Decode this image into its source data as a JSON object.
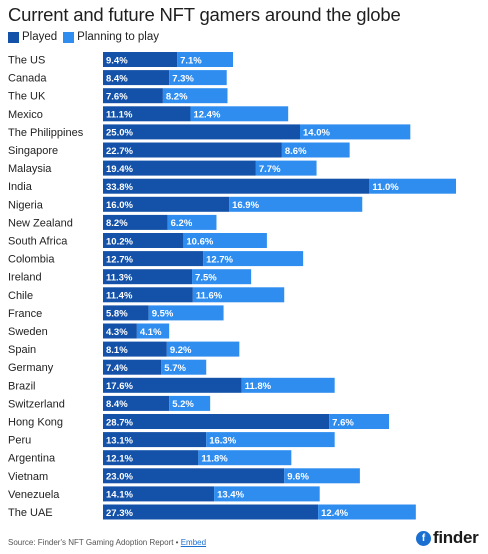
{
  "title": "Current and future NFT gamers around the globe",
  "legend": [
    {
      "label": "Played",
      "color": "#1451a8"
    },
    {
      "label": "Planning to play",
      "color": "#2f8df0"
    }
  ],
  "source": {
    "text": "Source: Finder's NFT Gaming Adoption Report • ",
    "link": "Embed"
  },
  "logo": {
    "mark": "f",
    "word": "finder"
  },
  "chart_data": {
    "type": "bar",
    "orientation": "horizontal",
    "stacked": true,
    "categories": [
      "The US",
      "Canada",
      "The UK",
      "Mexico",
      "The Philippines",
      "Singapore",
      "Malaysia",
      "India",
      "Nigeria",
      "New Zealand",
      "South Africa",
      "Colombia",
      "Ireland",
      "Chile",
      "France",
      "Sweden",
      "Spain",
      "Germany",
      "Brazil",
      "Switzerland",
      "Hong Kong",
      "Peru",
      "Argentina",
      "Vietnam",
      "Venezuela",
      "The UAE"
    ],
    "series": [
      {
        "name": "Played",
        "color": "#1451a8",
        "values": [
          9.4,
          8.4,
          7.6,
          11.1,
          25.0,
          22.7,
          19.4,
          33.8,
          16.0,
          8.2,
          10.2,
          12.7,
          11.3,
          11.4,
          5.8,
          4.3,
          8.1,
          7.4,
          17.6,
          8.4,
          28.7,
          13.1,
          12.1,
          23.0,
          14.1,
          27.3
        ]
      },
      {
        "name": "Planning to play",
        "color": "#2f8df0",
        "values": [
          7.1,
          7.3,
          8.2,
          12.4,
          14.0,
          8.6,
          7.7,
          11.0,
          16.9,
          6.2,
          10.6,
          12.7,
          7.5,
          11.6,
          9.5,
          4.1,
          9.2,
          5.7,
          11.8,
          5.2,
          7.6,
          16.3,
          11.8,
          9.6,
          13.4,
          12.4
        ]
      }
    ],
    "value_format": "%",
    "grid": false,
    "legend_position": "top-left"
  }
}
